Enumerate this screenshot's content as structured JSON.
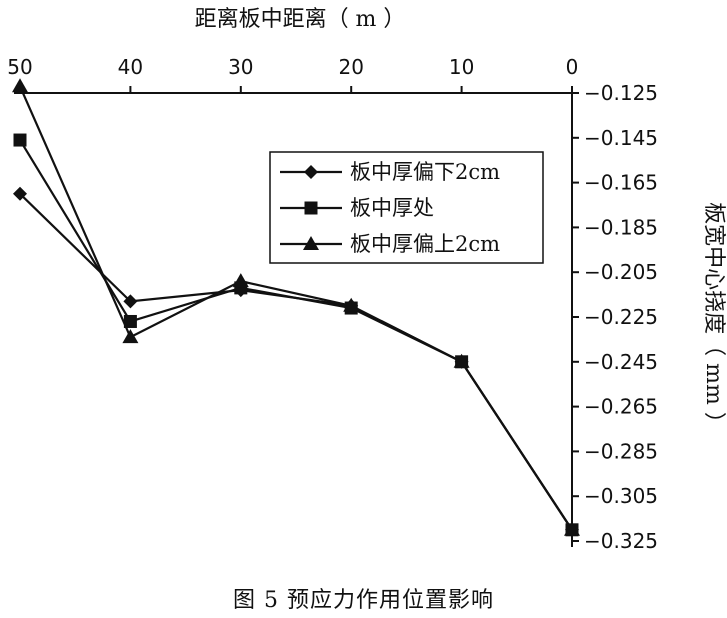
{
  "figure": {
    "caption": "图 5   预应力作用位置影响"
  },
  "chart_data": {
    "type": "line",
    "title": "",
    "xlabel": "距离板中距离（ m ）",
    "ylabel": "板宽中心挠度（ mm ）",
    "x_axis_position": "top",
    "y_axis_position": "right",
    "x_reversed": true,
    "xlim": [
      0,
      50
    ],
    "ylim": [
      -0.325,
      -0.125
    ],
    "x_ticks": [
      "50",
      "40",
      "30",
      "20",
      "10",
      "0"
    ],
    "y_ticks": [
      "-0.125",
      "-0.145",
      "-0.165",
      "-0.185",
      "-0.205",
      "-0.225",
      "-0.245",
      "-0.265",
      "-0.285",
      "-0.305",
      "-0.325"
    ],
    "grid": false,
    "legend_position": "upper-right",
    "x": [
      50,
      40,
      30,
      20,
      10,
      0
    ],
    "series": [
      {
        "name": "板中厚偏下2cm",
        "marker": "diamond",
        "values": [
          -0.17,
          -0.218,
          -0.213,
          -0.22,
          -0.245,
          -0.32
        ]
      },
      {
        "name": "板中厚处",
        "marker": "square",
        "values": [
          -0.146,
          -0.227,
          -0.212,
          -0.221,
          -0.245,
          -0.32
        ]
      },
      {
        "name": "板中厚偏上2cm",
        "marker": "triangle",
        "values": [
          -0.122,
          -0.234,
          -0.209,
          -0.22,
          -0.245,
          -0.32
        ]
      }
    ]
  }
}
